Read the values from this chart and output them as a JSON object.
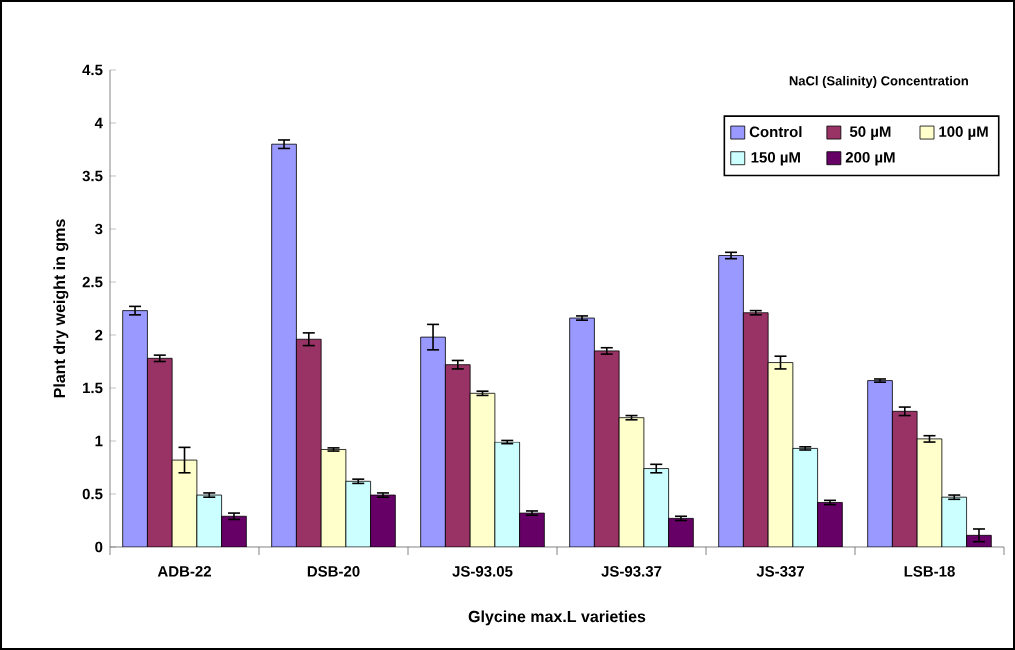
{
  "chart_data": {
    "type": "bar",
    "xlabel": "Glycine max.L varieties",
    "ylabel": "Plant dry weight in gms",
    "legend_title": "NaCl (Salinity) Concentration",
    "legend": "top right",
    "categories": [
      "ADB-22",
      "DSB-20",
      "JS-93.05",
      "JS-93.37",
      "JS-337",
      "LSB-18"
    ],
    "series": [
      {
        "name": "Control",
        "color": "#9999ff",
        "values": [
          2.23,
          3.8,
          1.98,
          2.16,
          2.75,
          1.57
        ],
        "errors": [
          0.04,
          0.04,
          0.12,
          0.02,
          0.03,
          0.015
        ]
      },
      {
        "name": "50 µM",
        "color": "#993366",
        "values": [
          1.78,
          1.96,
          1.72,
          1.85,
          2.21,
          1.28
        ],
        "errors": [
          0.03,
          0.06,
          0.04,
          0.03,
          0.02,
          0.04
        ]
      },
      {
        "name": "100 µM",
        "color": "#ffffcc",
        "values": [
          0.82,
          0.92,
          1.45,
          1.22,
          1.74,
          1.02
        ],
        "errors": [
          0.12,
          0.015,
          0.02,
          0.02,
          0.06,
          0.03
        ]
      },
      {
        "name": "150 µM",
        "color": "#ccffff",
        "values": [
          0.49,
          0.62,
          0.99,
          0.74,
          0.93,
          0.47
        ],
        "errors": [
          0.02,
          0.02,
          0.015,
          0.04,
          0.015,
          0.02
        ]
      },
      {
        "name": "200 µM",
        "color": "#660066",
        "values": [
          0.29,
          0.49,
          0.32,
          0.27,
          0.42,
          0.11
        ],
        "errors": [
          0.03,
          0.02,
          0.02,
          0.02,
          0.02,
          0.06
        ]
      }
    ],
    "ylim": [
      0,
      4.5
    ],
    "yticks": [
      0,
      0.5,
      1,
      1.5,
      2,
      2.5,
      3,
      3.5,
      4,
      4.5
    ]
  }
}
